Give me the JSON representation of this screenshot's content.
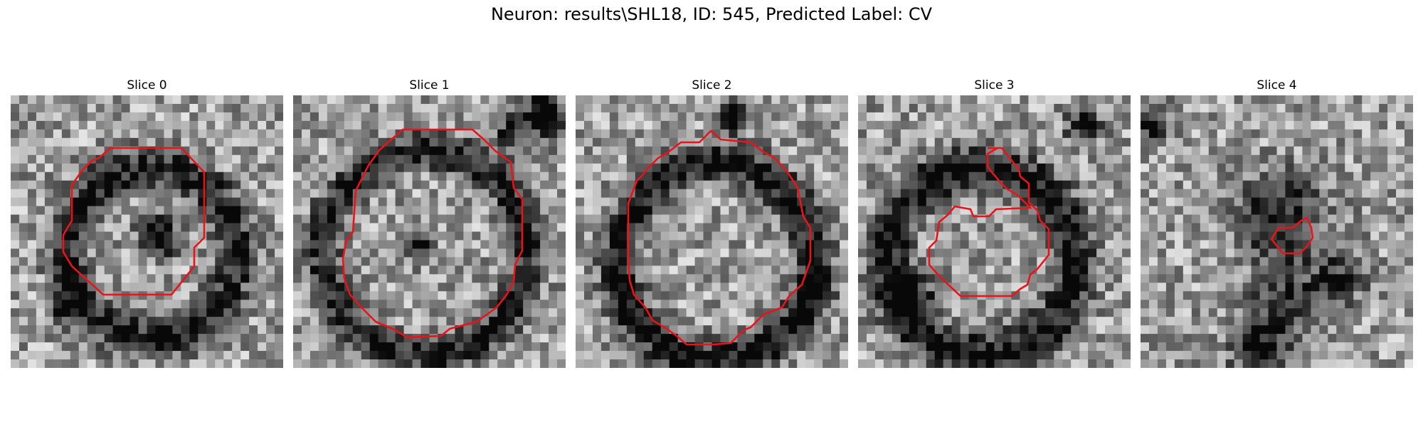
{
  "figure": {
    "title": "Neuron: results\\SHL18, ID: 545, Predicted Label: CV"
  },
  "slices": [
    {
      "title": "Slice 0"
    },
    {
      "title": "Slice 1"
    },
    {
      "title": "Slice 2"
    },
    {
      "title": "Slice 3"
    },
    {
      "title": "Slice 4"
    }
  ],
  "colors": {
    "contour": "#e8141a",
    "background": "#ffffff"
  }
}
